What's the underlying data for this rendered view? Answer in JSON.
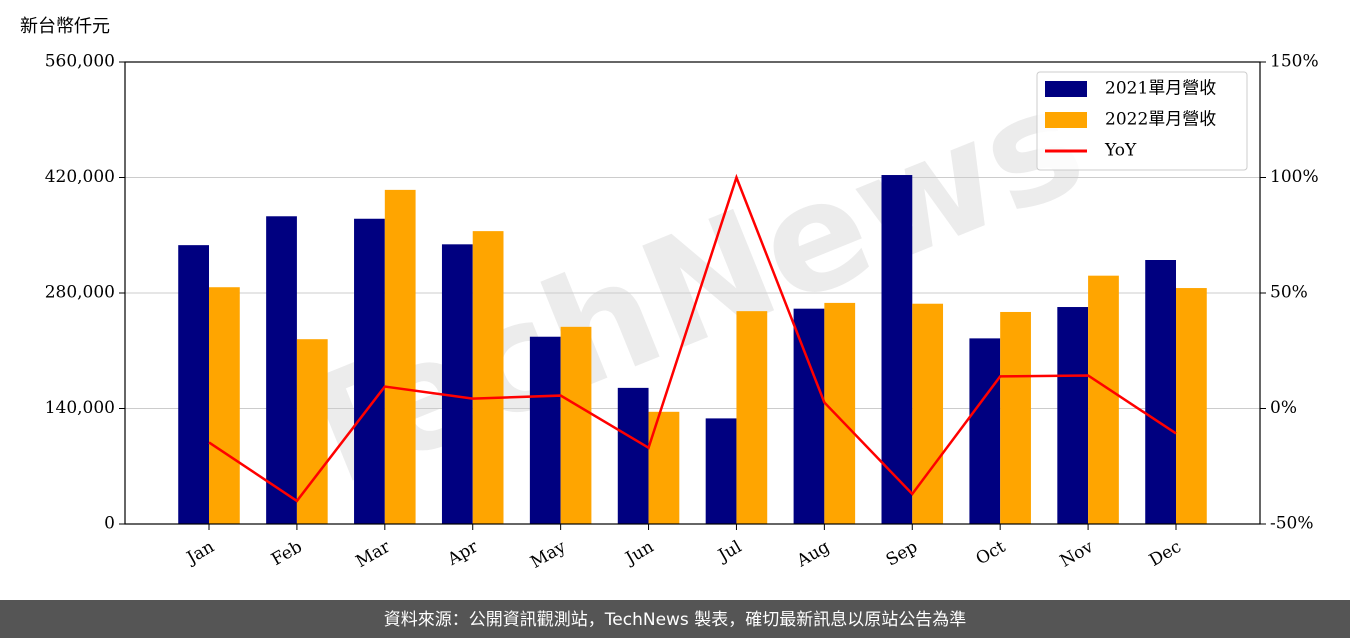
{
  "chart_data": {
    "type": "bar",
    "y_label": "新台幣仟元",
    "watermark": "TechNews",
    "footer": "資料來源：公開資訊觀測站，TechNews 製表，確切最新訊息以原站公告為準",
    "categories": [
      "Jan",
      "Feb",
      "Mar",
      "Apr",
      "May",
      "Jun",
      "Jul",
      "Aug",
      "Sep",
      "Oct",
      "Nov",
      "Dec"
    ],
    "series": [
      {
        "name": "2021單月營收",
        "color": "#000080",
        "values": [
          338000,
          373000,
          370000,
          339000,
          227000,
          165000,
          128000,
          261000,
          423000,
          225000,
          263000,
          320000
        ]
      },
      {
        "name": "2022單月營收",
        "color": "#ffa500",
        "values": [
          287000,
          224000,
          405000,
          355000,
          239000,
          136000,
          258000,
          268000,
          267000,
          257000,
          301000,
          286000
        ]
      },
      {
        "name": "YoY",
        "type": "line",
        "axis": "y2",
        "color": "#ff0000",
        "values": [
          -14.7,
          -40,
          9.5,
          4.3,
          5.6,
          -17,
          100,
          2.6,
          -37,
          13.9,
          14.3,
          -10.8
        ]
      }
    ],
    "ylim": [
      0,
      560000
    ],
    "yticks": [
      0,
      {
        "value": 140000,
        "label": "140,000"
      },
      {
        "value": 280000,
        "label": "280,000"
      },
      {
        "value": 420000,
        "label": "420,000"
      },
      {
        "value": 560000,
        "label": "560,000"
      }
    ],
    "y2lim": [
      -50,
      150
    ],
    "y2ticks": [
      {
        "value": -50,
        "label": "-50%"
      },
      {
        "value": 0,
        "label": "0%"
      },
      {
        "value": 50,
        "label": "50%"
      },
      {
        "value": 100,
        "label": "100%"
      },
      {
        "value": 150,
        "label": "150%"
      }
    ],
    "grid": true,
    "legend": "upper right"
  }
}
